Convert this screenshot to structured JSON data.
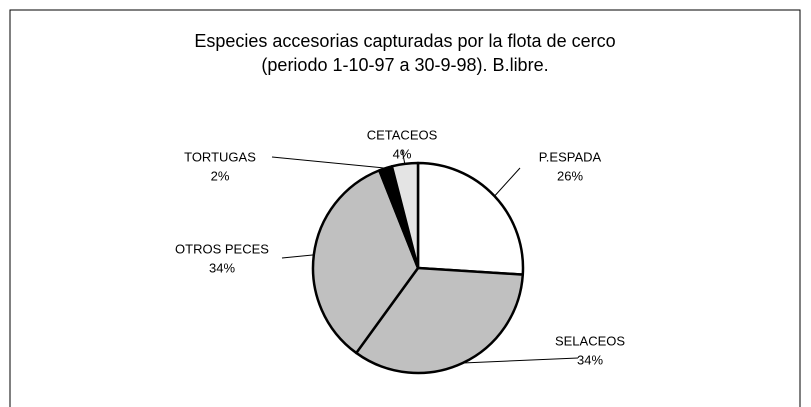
{
  "chart_data": {
    "type": "pie",
    "title": "Especies accesorias capturadas por la flota de cerco",
    "subtitle": "(periodo 1-10-97 a 30-9-98). B.libre.",
    "categories": [
      "P.ESPADA",
      "SELACEOS",
      "OTROS PECES",
      "TORTUGAS",
      "CETACEOS"
    ],
    "values": [
      26,
      34,
      34,
      2,
      4
    ],
    "value_labels": [
      "26%",
      "34%",
      "34%",
      "2%",
      "4%"
    ],
    "colors": [
      "#ffffff",
      "#c0c0c0",
      "#c0c0c0",
      "#000000",
      "#e4e4e4"
    ]
  }
}
